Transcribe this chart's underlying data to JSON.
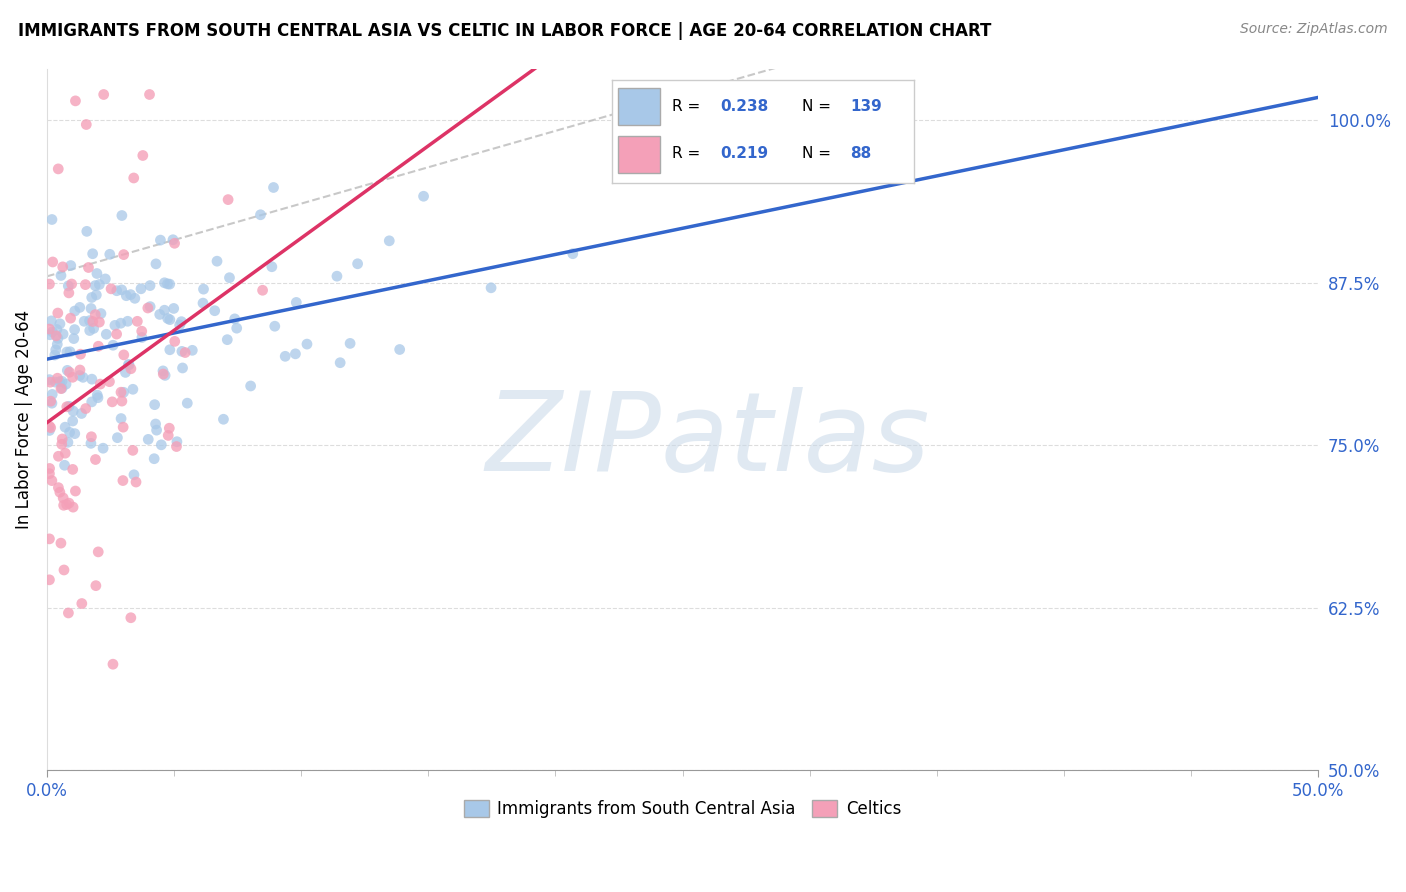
{
  "title": "IMMIGRANTS FROM SOUTH CENTRAL ASIA VS CELTIC IN LABOR FORCE | AGE 20-64 CORRELATION CHART",
  "source": "Source: ZipAtlas.com",
  "ylabel_text": "In Labor Force | Age 20-64",
  "ylabel_values": [
    1.0,
    0.875,
    0.75,
    0.625,
    0.5
  ],
  "xlim": [
    0.0,
    0.5
  ],
  "ylim": [
    0.5,
    1.04
  ],
  "blue_color": "#a8c8e8",
  "pink_color": "#f4a0b8",
  "blue_line_color": "#3366cc",
  "pink_line_color": "#dd3366",
  "pink_dash_color": "#dd3366",
  "watermark_text": "ZIPatlas",
  "watermark_color": "#c8d8e8",
  "blue_n": 139,
  "pink_n": 88,
  "blue_R": 0.238,
  "pink_R": 0.219,
  "legend_r_blue": "0.238",
  "legend_n_blue": "139",
  "legend_r_pink": "0.219",
  "legend_n_pink": "88",
  "title_fontsize": 12,
  "source_fontsize": 10,
  "tick_fontsize": 12,
  "ylabel_fontsize": 12,
  "legend_fontsize": 11,
  "scatter_size": 60,
  "blue_alpha": 0.75,
  "pink_alpha": 0.8
}
